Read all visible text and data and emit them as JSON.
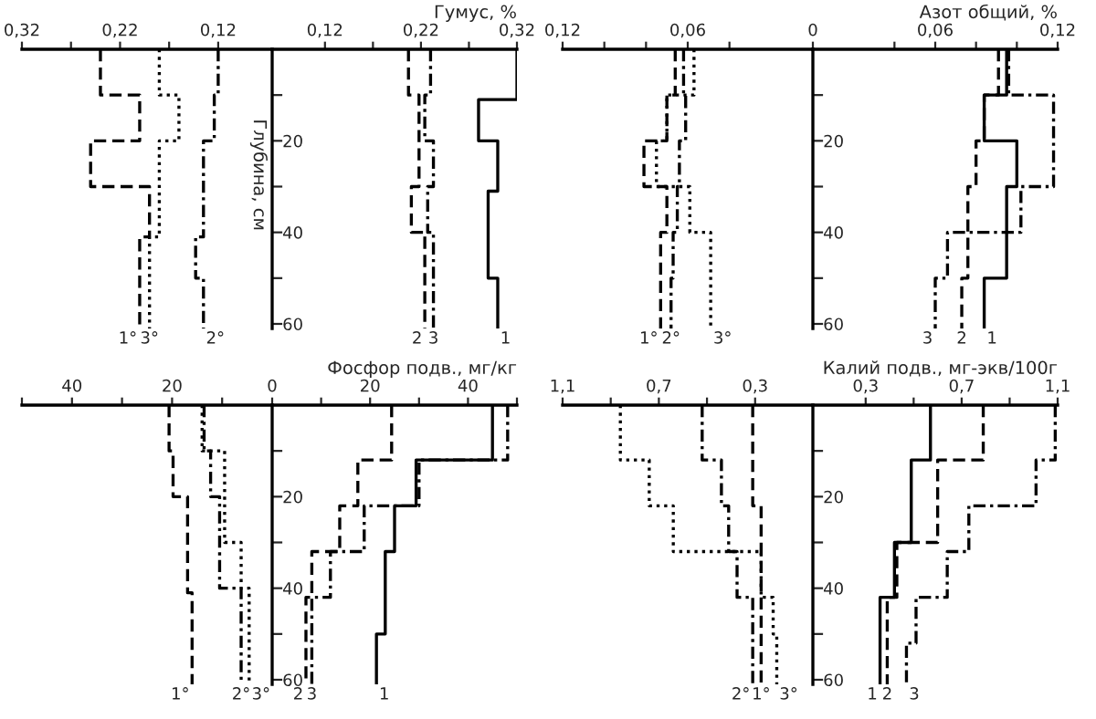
{
  "chart_data": [
    {
      "type": "line",
      "orientation": "horizontal",
      "xlim": [
        0.32,
        0.065
      ],
      "ylim": [
        61,
        0
      ],
      "tick_labels": "x",
      "xticks": [
        {
          "value": 0.32,
          "label": "0,32"
        },
        {
          "value": 0.27,
          "label": null
        },
        {
          "value": 0.22,
          "label": "0,22"
        },
        {
          "value": 0.17,
          "label": null
        },
        {
          "value": 0.12,
          "label": "0,12"
        }
      ],
      "series": [
        {
          "name": "1°",
          "color": "#000000",
          "line_style": "dashed",
          "x": [
            0,
            10,
            10,
            20,
            20,
            30,
            30,
            41,
            41,
            61
          ],
          "values": [
            0.24,
            0.24,
            0.2,
            0.2,
            0.25,
            0.25,
            0.19,
            0.19,
            0.2,
            0.2
          ]
        },
        {
          "name": "3°",
          "color": "#000000",
          "line_style": "dotted",
          "x": [
            0,
            10,
            10,
            20,
            20,
            41,
            41,
            61
          ],
          "values": [
            0.18,
            0.18,
            0.16,
            0.16,
            0.18,
            0.18,
            0.19,
            0.19
          ]
        },
        {
          "name": "2°",
          "color": "#000000",
          "line_style": "dashdot",
          "x": [
            0,
            10,
            10,
            20,
            20,
            41,
            41,
            50,
            50,
            61
          ],
          "values": [
            0.12,
            0.12,
            0.124,
            0.124,
            0.135,
            0.135,
            0.143,
            0.143,
            0.135,
            0.135
          ]
        }
      ]
    },
    {
      "type": "line",
      "orientation": "horizontal",
      "title": "Гумус, %",
      "ylabel": "Глубина, см",
      "xlim": [
        0.065,
        0.32
      ],
      "ylim": [
        61,
        0
      ],
      "xticks": [
        {
          "value": 0.12,
          "label": "0,12"
        },
        {
          "value": 0.17,
          "label": null
        },
        {
          "value": 0.22,
          "label": "0,22"
        },
        {
          "value": 0.27,
          "label": null
        },
        {
          "value": 0.32,
          "label": "0,32"
        }
      ],
      "yticks": [
        {
          "value": 10,
          "label": null
        },
        20,
        {
          "value": 30,
          "label": null
        },
        40,
        {
          "value": 50,
          "label": null
        },
        60
      ],
      "series": [
        {
          "name": "1",
          "color": "#000000",
          "line_style": "solid",
          "x": [
            0,
            11,
            11,
            20,
            20,
            31,
            31,
            50,
            50,
            61
          ],
          "values": [
            0.32,
            0.32,
            0.28,
            0.28,
            0.3,
            0.3,
            0.29,
            0.29,
            0.3,
            0.3
          ]
        },
        {
          "name": "2",
          "color": "#000000",
          "line_style": "dashed",
          "x": [
            0,
            10,
            10,
            30,
            30,
            40,
            40,
            61
          ],
          "values": [
            0.207,
            0.207,
            0.218,
            0.218,
            0.21,
            0.21,
            0.224,
            0.224
          ]
        },
        {
          "name": "3",
          "color": "#000000",
          "line_style": "dashdot",
          "x": [
            0,
            10,
            10,
            20,
            20,
            30,
            30,
            40,
            40,
            61
          ],
          "values": [
            0.23,
            0.23,
            0.224,
            0.224,
            0.233,
            0.233,
            0.227,
            0.227,
            0.233,
            0.233
          ]
        }
      ]
    },
    {
      "type": "line",
      "orientation": "horizontal",
      "xlim": [
        0.12,
        0
      ],
      "ylim": [
        61,
        0
      ],
      "tick_labels": "x",
      "xticks": [
        {
          "value": 0.12,
          "label": "0,12"
        },
        {
          "value": 0.1,
          "label": null
        },
        {
          "value": 0.08,
          "label": null
        },
        {
          "value": 0.06,
          "label": "0,06"
        },
        {
          "value": 0.04,
          "label": null
        }
      ],
      "series": [
        {
          "name": "1°",
          "color": "#000000",
          "line_style": "dashed",
          "x": [
            0,
            10,
            10,
            20,
            20,
            30,
            30,
            40,
            40,
            61
          ],
          "values": [
            0.066,
            0.066,
            0.07,
            0.07,
            0.081,
            0.081,
            0.07,
            0.07,
            0.073,
            0.073
          ]
        },
        {
          "name": "2°",
          "color": "#000000",
          "line_style": "dashdot",
          "x": [
            0,
            10,
            10,
            20,
            20,
            30,
            30,
            40,
            40,
            50,
            50,
            61
          ],
          "values": [
            0.062,
            0.062,
            0.061,
            0.061,
            0.064,
            0.064,
            0.065,
            0.065,
            0.067,
            0.067,
            0.068,
            0.068
          ]
        },
        {
          "name": "3°",
          "color": "#000000",
          "line_style": "dotted",
          "x": [
            0,
            10,
            10,
            20,
            20,
            30,
            30,
            40,
            40,
            61
          ],
          "values": [
            0.057,
            0.057,
            0.07,
            0.07,
            0.075,
            0.075,
            0.059,
            0.059,
            0.049,
            0.049
          ]
        }
      ]
    },
    {
      "type": "line",
      "orientation": "horizontal",
      "title": "Азот общий, %",
      "xlim": [
        0,
        0.12
      ],
      "ylim": [
        61,
        0
      ],
      "xticks": [
        0,
        {
          "value": 0.04,
          "label": null
        },
        {
          "value": 0.06,
          "label": "0,06"
        },
        {
          "value": 0.08,
          "label": null
        },
        {
          "value": 0.1,
          "label": null
        },
        {
          "value": 0.12,
          "label": "0,12"
        }
      ],
      "yticks": [
        {
          "value": 10,
          "label": null
        },
        20,
        {
          "value": 30,
          "label": null
        },
        40,
        {
          "value": 50,
          "label": null
        },
        60
      ],
      "series": [
        {
          "name": "1",
          "color": "#000000",
          "line_style": "solid",
          "x": [
            0,
            10,
            10,
            20,
            20,
            30,
            30,
            50,
            50,
            61
          ],
          "values": [
            0.095,
            0.095,
            0.084,
            0.084,
            0.1,
            0.1,
            0.095,
            0.095,
            0.084,
            0.084
          ]
        },
        {
          "name": "2",
          "color": "#000000",
          "line_style": "dashed",
          "x": [
            0,
            10,
            10,
            20,
            20,
            30,
            30,
            50,
            50,
            61
          ],
          "values": [
            0.091,
            0.091,
            0.084,
            0.084,
            0.08,
            0.08,
            0.076,
            0.076,
            0.073,
            0.073
          ]
        },
        {
          "name": "3",
          "color": "#000000",
          "line_style": "dashdot",
          "x": [
            0,
            10,
            10,
            30,
            30,
            40,
            40,
            50,
            50,
            61
          ],
          "values": [
            0.096,
            0.096,
            0.118,
            0.118,
            0.102,
            0.102,
            0.066,
            0.066,
            0.06,
            0.06
          ]
        }
      ]
    },
    {
      "type": "line",
      "orientation": "horizontal",
      "xlim": [
        50,
        0
      ],
      "ylim": [
        61,
        0
      ],
      "tick_labels": "x",
      "xticks": [
        {
          "value": 50,
          "label": null
        },
        40,
        {
          "value": 30,
          "label": null
        },
        20,
        {
          "value": 10,
          "label": null
        }
      ],
      "series": [
        {
          "name": "1°",
          "color": "#000000",
          "line_style": "dashed",
          "x": [
            0,
            10,
            10,
            20,
            20,
            41,
            41,
            61
          ],
          "values": [
            20.6,
            20.6,
            19.8,
            19.8,
            16.9,
            16.9,
            16,
            16
          ]
        },
        {
          "name": "2°",
          "color": "#000000",
          "line_style": "dashdot",
          "x": [
            0,
            10,
            10,
            20,
            20,
            40,
            40,
            61
          ],
          "values": [
            13.6,
            13.6,
            12.3,
            12.3,
            10.5,
            10.5,
            6.2,
            6.2
          ]
        },
        {
          "name": "3°",
          "color": "#000000",
          "line_style": "dotted",
          "x": [
            0,
            10,
            10,
            30,
            30,
            40,
            40,
            61
          ],
          "values": [
            14,
            14,
            9.5,
            9.5,
            6.2,
            6.2,
            4.6,
            4.6
          ]
        }
      ]
    },
    {
      "type": "line",
      "orientation": "horizontal",
      "title": "Фосфор подв., мг/кг",
      "xlim": [
        0,
        50
      ],
      "ylim": [
        61,
        0
      ],
      "xticks": [
        0,
        {
          "value": 10,
          "label": null
        },
        20,
        {
          "value": 30,
          "label": null
        },
        40,
        {
          "value": 50,
          "label": null
        }
      ],
      "yticks": [
        {
          "value": 10,
          "label": null
        },
        20,
        {
          "value": 30,
          "label": null
        },
        40,
        {
          "value": 50,
          "label": null
        },
        60
      ],
      "series": [
        {
          "name": "1",
          "color": "#000000",
          "line_style": "solid",
          "x": [
            0,
            12,
            12,
            22,
            22,
            32,
            32,
            50,
            50,
            61
          ],
          "values": [
            45,
            45,
            29.4,
            29.4,
            25,
            25,
            23.1,
            23.1,
            21.3,
            21.3
          ]
        },
        {
          "name": "2",
          "color": "#000000",
          "line_style": "dashed",
          "x": [
            0,
            12,
            12,
            22,
            22,
            32,
            32,
            42,
            42,
            61
          ],
          "values": [
            24.4,
            24.4,
            17.5,
            17.5,
            13.8,
            13.8,
            8.1,
            8.1,
            6.9,
            6.9
          ]
        },
        {
          "name": "3",
          "color": "#000000",
          "line_style": "dashdot",
          "x": [
            0,
            12,
            12,
            22,
            22,
            32,
            32,
            42,
            42,
            61
          ],
          "values": [
            48.1,
            48.1,
            30,
            30,
            18.8,
            18.8,
            11.9,
            11.9,
            8.1,
            8.1
          ]
        }
      ]
    },
    {
      "type": "line",
      "orientation": "horizontal",
      "xlim": [
        1.1,
        0.06
      ],
      "ylim": [
        61,
        0
      ],
      "tick_labels": "x",
      "xticks": [
        {
          "value": 1.1,
          "label": "1,1"
        },
        {
          "value": 0.9,
          "label": null
        },
        {
          "value": 0.7,
          "label": "0,7"
        },
        {
          "value": 0.5,
          "label": null
        },
        {
          "value": 0.3,
          "label": "0,3"
        }
      ],
      "series": [
        {
          "name": "2°",
          "color": "#000000",
          "line_style": "dashdot",
          "x": [
            0,
            12,
            12,
            22,
            22,
            32,
            32,
            42,
            42,
            61
          ],
          "values": [
            0.52,
            0.52,
            0.44,
            0.44,
            0.41,
            0.41,
            0.375,
            0.375,
            0.31,
            0.31
          ]
        },
        {
          "name": "1°",
          "color": "#000000",
          "line_style": "dashed",
          "x": [
            0,
            22,
            22,
            61
          ],
          "values": [
            0.31,
            0.31,
            0.275,
            0.275
          ]
        },
        {
          "name": "3°",
          "color": "#000000",
          "line_style": "dotted",
          "x": [
            0,
            12,
            12,
            22,
            22,
            32,
            32,
            42,
            42,
            50,
            50,
            61
          ],
          "values": [
            0.86,
            0.86,
            0.74,
            0.74,
            0.64,
            0.64,
            0.275,
            0.275,
            0.225,
            0.225,
            0.21,
            0.21
          ]
        }
      ]
    },
    {
      "type": "line",
      "orientation": "horizontal",
      "title": "Калий подв., мг-экв/100г",
      "xlim": [
        0.08,
        1.1
      ],
      "ylim": [
        61,
        0
      ],
      "xticks": [
        {
          "value": 0.3,
          "label": "0,3"
        },
        {
          "value": 0.5,
          "label": null
        },
        {
          "value": 0.7,
          "label": "0,7"
        },
        {
          "value": 0.9,
          "label": null
        },
        {
          "value": 1.1,
          "label": "1,1"
        }
      ],
      "yticks": [
        {
          "value": 10,
          "label": null
        },
        20,
        {
          "value": 30,
          "label": null
        },
        40,
        {
          "value": 50,
          "label": null
        },
        60
      ],
      "series": [
        {
          "name": "1",
          "color": "#000000",
          "line_style": "solid",
          "x": [
            0,
            12,
            12,
            30,
            30,
            42,
            42,
            61
          ],
          "values": [
            0.57,
            0.57,
            0.49,
            0.49,
            0.42,
            0.42,
            0.36,
            0.36
          ]
        },
        {
          "name": "2",
          "color": "#000000",
          "line_style": "dashed",
          "x": [
            0,
            12,
            12,
            30,
            30,
            42,
            42,
            61
          ],
          "values": [
            0.79,
            0.79,
            0.6,
            0.6,
            0.43,
            0.43,
            0.39,
            0.39
          ]
        },
        {
          "name": "3",
          "color": "#000000",
          "line_style": "dashdot",
          "x": [
            0,
            12,
            12,
            22,
            22,
            32,
            32,
            42,
            42,
            52,
            52,
            61
          ],
          "values": [
            1.09,
            1.09,
            1.01,
            1.01,
            0.73,
            0.73,
            0.64,
            0.64,
            0.51,
            0.51,
            0.47,
            0.47
          ]
        }
      ]
    }
  ]
}
